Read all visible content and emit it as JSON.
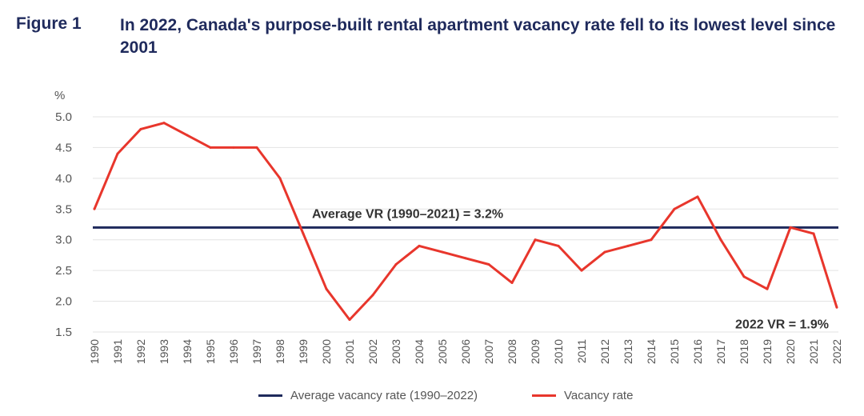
{
  "figure": {
    "label": "Figure 1",
    "title": "In 2022, Canada's purpose-built rental apartment vacancy rate fell to its lowest level since 2001"
  },
  "colors": {
    "title": "#1f2a5c",
    "average_line": "#1f2a5c",
    "vacancy_line": "#e8362c",
    "grid": "#e3e3e3",
    "text": "#555555"
  },
  "chart_data": {
    "type": "line",
    "title": "In 2022, Canada's purpose-built rental apartment vacancy rate fell to its lowest level since 2001",
    "ylabel": "%",
    "xlabel": "",
    "ylim": [
      1.5,
      5.0
    ],
    "yticks": [
      "1.5",
      "2.0",
      "2.5",
      "3.0",
      "3.5",
      "4.0",
      "4.5",
      "5.0"
    ],
    "grid": "horizontal",
    "legend_position": "bottom",
    "categories": [
      "1990",
      "1991",
      "1992",
      "1993",
      "1994",
      "1995",
      "1996",
      "1997",
      "1998",
      "1999",
      "2000",
      "2001",
      "2002",
      "2003",
      "2004",
      "2005",
      "2006",
      "2007",
      "2008",
      "2009",
      "2010",
      "2011",
      "2012",
      "2013",
      "2014",
      "2015",
      "2016",
      "2017",
      "2018",
      "2019",
      "2020",
      "2021",
      "2022"
    ],
    "series": [
      {
        "name": "Average vacancy rate (1990–2022)",
        "type": "hline",
        "value": 3.2,
        "color": "#1f2a5c"
      },
      {
        "name": "Vacancy rate",
        "color": "#e8362c",
        "values": [
          3.5,
          4.4,
          4.8,
          4.9,
          4.7,
          4.5,
          4.5,
          4.5,
          4.0,
          3.1,
          2.2,
          1.7,
          2.1,
          2.6,
          2.9,
          2.8,
          2.7,
          2.6,
          2.3,
          3.0,
          2.9,
          2.5,
          2.8,
          2.9,
          3.0,
          3.5,
          3.7,
          3.0,
          2.4,
          2.2,
          3.2,
          3.1,
          1.9
        ]
      }
    ],
    "annotations": [
      {
        "text": "Average VR (1990–2021) = 3.2%",
        "x": "1999",
        "y": 3.2
      },
      {
        "text": "2022 VR = 1.9%",
        "x": "2022",
        "y": 1.9
      }
    ]
  }
}
